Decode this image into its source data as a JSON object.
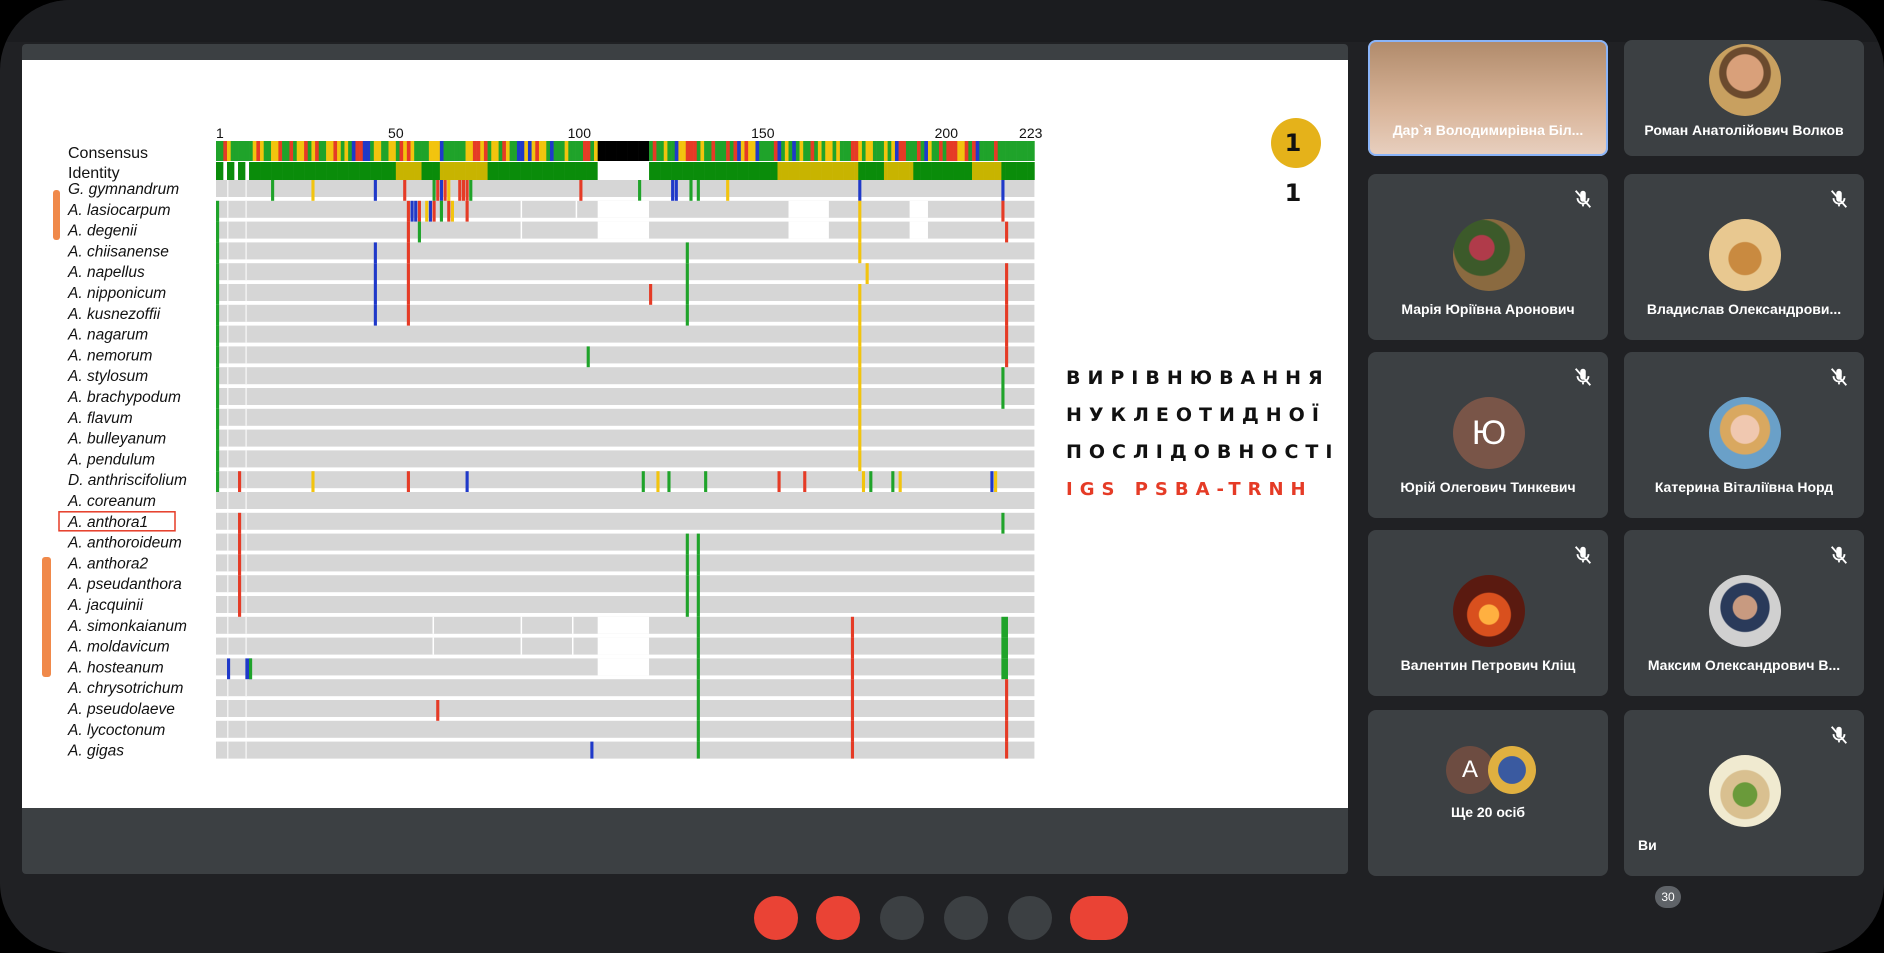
{
  "slide": {
    "page_number": "1 1",
    "title_lines": [
      "ВИРІВНЮВАННЯ",
      "НУКЛЕОТИДНОЇ",
      "ПОСЛІДОВНОСТІ"
    ],
    "subtitle": "IGS PSBA-TRNH",
    "alignment": {
      "ruler_ticks": [
        "1",
        "50",
        "100",
        "150",
        "200",
        "223"
      ],
      "header_rows": [
        "Consensus",
        "Identity"
      ],
      "species": [
        "G. gymnandrum",
        "A. lasiocarpum",
        "A. degenii",
        "A. chiisanense",
        "A. napellus",
        "A. nipponicum",
        "A. kusnezoffii",
        "A. nagarum",
        "A. nemorum",
        "A. stylosum",
        "A. brachypodum",
        "A. flavum",
        "A. bulleyanum",
        "A. pendulum",
        "D. anthriscifolium",
        "A. coreanum",
        "A. anthora1",
        "A. anthoroideum",
        "A. anthora2",
        "A. pseudanthora",
        "A. jacquinii",
        "A. simonkaianum",
        "A. moldavicum",
        "A. hosteanum",
        "A. chrysotrichum",
        "A. pseudolaeve",
        "A. lycoctonum",
        "A. gigas"
      ],
      "highlighted_species": "A. anthora1",
      "colors": {
        "A": "#1fa32a",
        "C": "#1f39c9",
        "G": "#f2c40e",
        "T": "#e53b26",
        "gap": "#ffffff",
        "match": "#d6d6d6",
        "identity_full": "#0a8c0a",
        "identity_partial": "#c8b400",
        "annotation": "#f0894a"
      }
    }
  },
  "participants": [
    {
      "name": "Дар`я Володимирівна Біл...",
      "muted": false,
      "avatar": "photo-woman",
      "active": true
    },
    {
      "name": "Роман Анатолійович Волков",
      "muted": false,
      "avatar": "photo-man"
    },
    {
      "name": "Марія Юріївна Аронович",
      "muted": true,
      "avatar": "photo-flowers"
    },
    {
      "name": "Владислав Олександрови...",
      "muted": true,
      "avatar": "photo-insect"
    },
    {
      "name": "Юрій Олегович Тинкевич",
      "muted": true,
      "avatar": "letter",
      "letter": "Ю"
    },
    {
      "name": "Катерина Віталіївна Норд",
      "muted": true,
      "avatar": "photo-woman-blonde"
    },
    {
      "name": "Валентин Петрович Кліщ",
      "muted": true,
      "avatar": "photo-fire"
    },
    {
      "name": "Максим Олександрович В...",
      "muted": true,
      "avatar": "photo-man-dark"
    },
    {
      "name": "Ще 20 осіб",
      "muted": false,
      "avatar": "group",
      "letter": "A"
    },
    {
      "name": "Ви",
      "muted": true,
      "avatar": "photo-plant"
    }
  ],
  "participant_count": "30"
}
